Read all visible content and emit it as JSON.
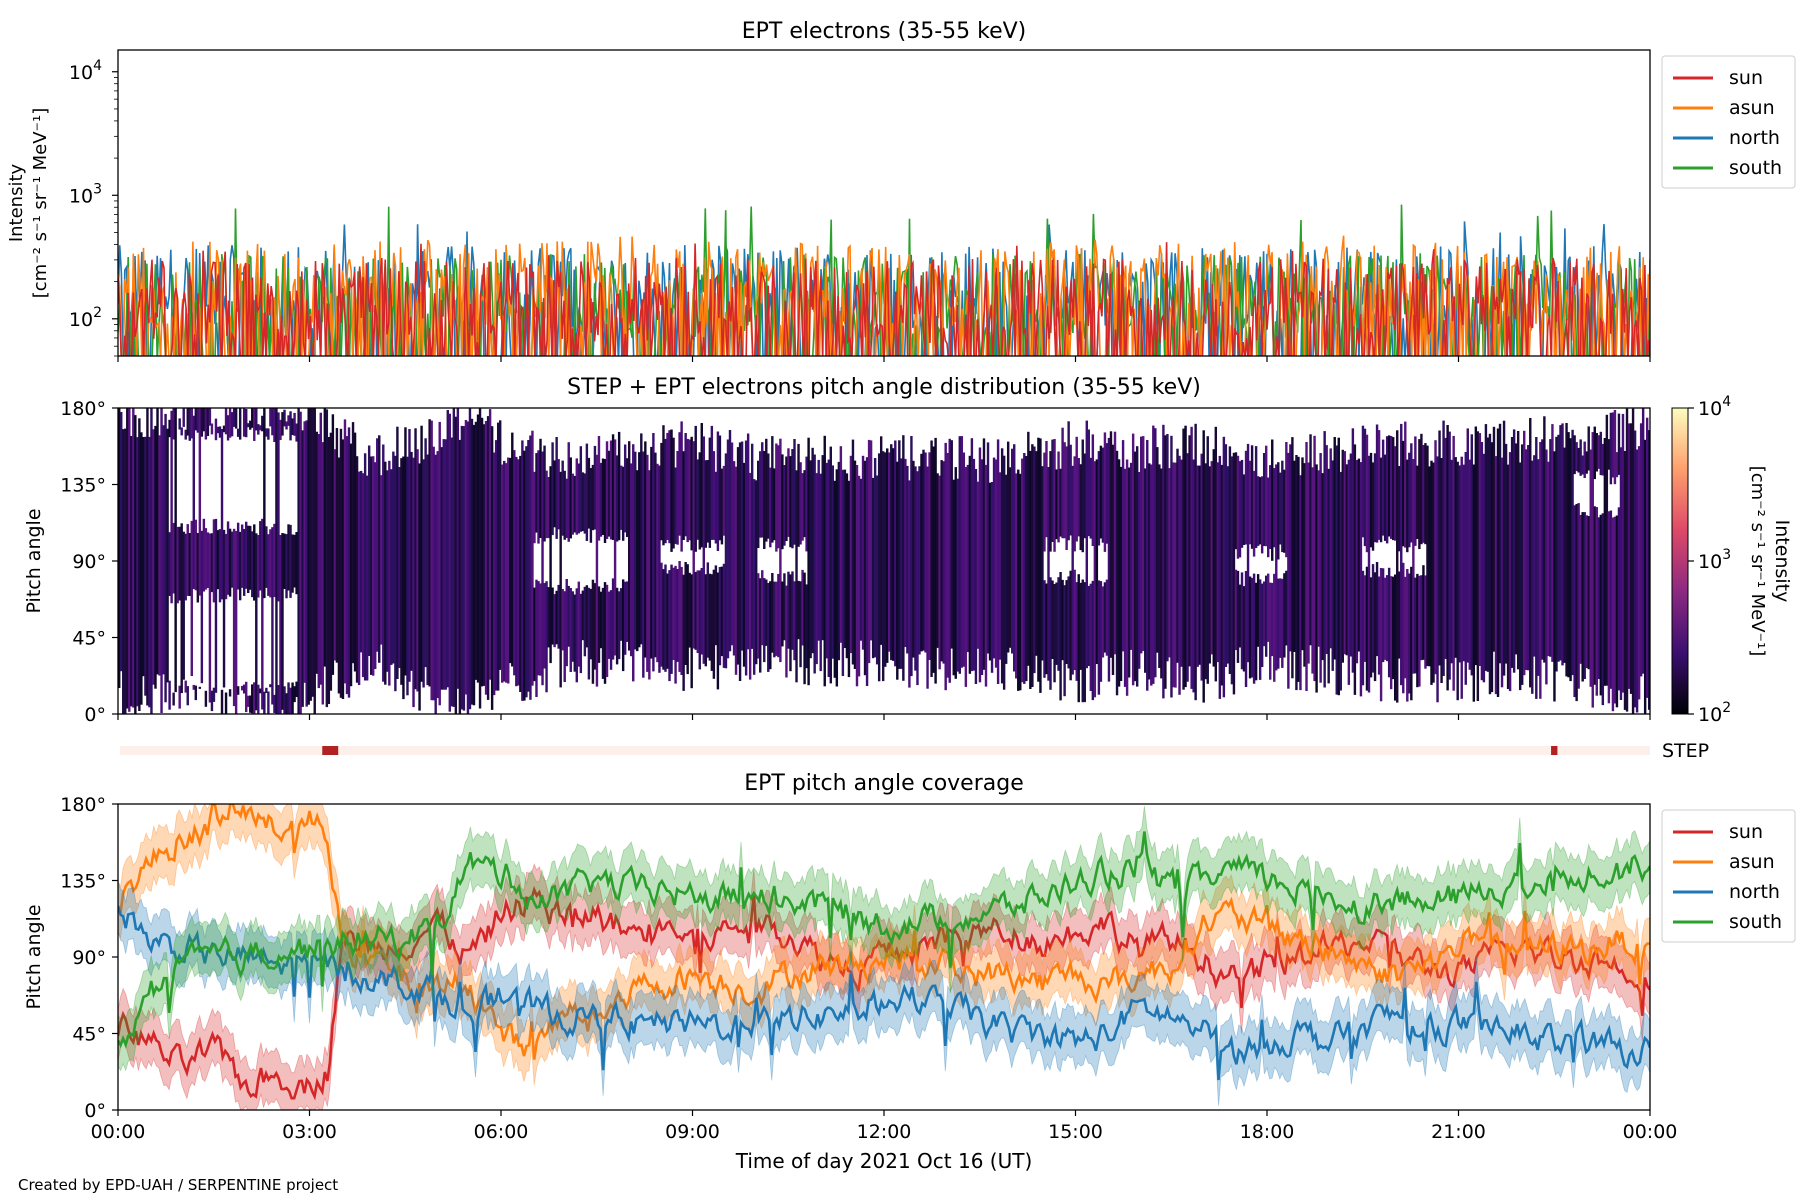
{
  "chart_data": [
    {
      "type": "line",
      "title": "EPT electrons (35-55 keV)",
      "ylabel_line1": "Intensity",
      "ylabel_line2": "[cm⁻² s⁻¹ sr⁻¹ MeV⁻¹]",
      "yscale": "log",
      "ylim": [
        50,
        15000
      ],
      "yticks": [
        {
          "base": "10",
          "exp": "2"
        },
        {
          "base": "10",
          "exp": "3"
        },
        {
          "base": "10",
          "exp": "4"
        }
      ],
      "xlim_hours": [
        0,
        24
      ],
      "legend_position": "outside-right",
      "series": [
        {
          "name": "sun",
          "color": "#d62728",
          "typical": 110,
          "peak": 420
        },
        {
          "name": "asun",
          "color": "#ff7f0e",
          "typical": 150,
          "peak": 480
        },
        {
          "name": "north",
          "color": "#1f77b4",
          "typical": 140,
          "peak": 620
        },
        {
          "name": "south",
          "color": "#2ca02c",
          "typical": 120,
          "peak": 880
        }
      ]
    },
    {
      "type": "heatmap",
      "title": "STEP + EPT electrons pitch angle distribution (35-55 keV)",
      "ylabel": "Pitch angle",
      "ylim": [
        0,
        180
      ],
      "yticks": [
        "0°",
        "45°",
        "90°",
        "135°",
        "180°"
      ],
      "colorbar": {
        "label_line1": "Intensity",
        "label_line2": "[cm⁻² s⁻¹ sr⁻¹ MeV⁻¹]",
        "scale": "log",
        "range": [
          100,
          10000
        ],
        "ticks": [
          {
            "base": "10",
            "exp": "2"
          },
          {
            "base": "10",
            "exp": "3"
          },
          {
            "base": "10",
            "exp": "4"
          }
        ],
        "colormap": [
          "#000004",
          "#3b0f70",
          "#8c2981",
          "#de4968",
          "#fe9f6d",
          "#fcfdbf"
        ]
      },
      "coverage_envelope_degrees": [
        [
          0.0,
          12,
          175
        ],
        [
          1.0,
          10,
          178
        ],
        [
          2.0,
          5,
          180
        ],
        [
          3.0,
          8,
          180
        ],
        [
          3.4,
          20,
          165
        ],
        [
          4.0,
          30,
          150
        ],
        [
          5.0,
          10,
          165
        ],
        [
          5.5,
          5,
          178
        ],
        [
          6.0,
          15,
          160
        ],
        [
          7.0,
          30,
          150
        ],
        [
          8.0,
          30,
          155
        ],
        [
          9.0,
          25,
          160
        ],
        [
          10.0,
          30,
          150
        ],
        [
          11.0,
          30,
          150
        ],
        [
          12.0,
          30,
          150
        ],
        [
          13.0,
          25,
          150
        ],
        [
          14.0,
          25,
          150
        ],
        [
          15.0,
          20,
          160
        ],
        [
          16.0,
          25,
          155
        ],
        [
          17.0,
          20,
          160
        ],
        [
          18.0,
          30,
          150
        ],
        [
          19.0,
          25,
          155
        ],
        [
          20.0,
          20,
          158
        ],
        [
          21.0,
          20,
          160
        ],
        [
          22.0,
          25,
          160
        ],
        [
          23.0,
          15,
          165
        ],
        [
          24.0,
          10,
          170
        ]
      ],
      "gaps_degrees": [
        [
          0.8,
          2.8,
          110,
          165
        ],
        [
          0.8,
          2.8,
          15,
          70
        ],
        [
          6.5,
          8.0,
          75,
          105
        ],
        [
          8.5,
          9.5,
          85,
          100
        ],
        [
          10.0,
          10.8,
          80,
          100
        ],
        [
          14.5,
          15.5,
          80,
          100
        ],
        [
          17.5,
          18.3,
          80,
          95
        ],
        [
          19.5,
          20.5,
          85,
          100
        ],
        [
          22.8,
          23.6,
          120,
          140
        ]
      ]
    },
    {
      "type": "bar",
      "label": "STEP",
      "segments_hours": [
        [
          3.2,
          3.45
        ],
        [
          22.45,
          22.55
        ]
      ],
      "active_color": "#b22222",
      "background_color": "#fdf0eb"
    },
    {
      "type": "line",
      "title": "EPT pitch angle coverage",
      "ylabel": "Pitch angle",
      "xlabel": "Time of day 2021 Oct 16 (UT)",
      "ylim": [
        0,
        180
      ],
      "yticks": [
        "0°",
        "45°",
        "90°",
        "135°",
        "180°"
      ],
      "xlim_hours": [
        0,
        24
      ],
      "xticks": [
        "00:00",
        "03:00",
        "06:00",
        "09:00",
        "12:00",
        "15:00",
        "18:00",
        "21:00",
        "00:00"
      ],
      "legend_position": "outside-right",
      "band_half_width_degrees": 15,
      "series": [
        {
          "name": "sun",
          "color": "#d62728",
          "points": [
            [
              0,
              50
            ],
            [
              0.5,
              40
            ],
            [
              1,
              25
            ],
            [
              1.5,
              35
            ],
            [
              2,
              15
            ],
            [
              2.5,
              20
            ],
            [
              3,
              15
            ],
            [
              3.3,
              25
            ],
            [
              3.5,
              100
            ],
            [
              4,
              95
            ],
            [
              4.5,
              100
            ],
            [
              5,
              110
            ],
            [
              5.5,
              90
            ],
            [
              6,
              115
            ],
            [
              6.5,
              125
            ],
            [
              7,
              115
            ],
            [
              7.5,
              115
            ],
            [
              8,
              105
            ],
            [
              8.5,
              110
            ],
            [
              9,
              100
            ],
            [
              9.5,
              105
            ],
            [
              10,
              110
            ],
            [
              10.5,
              105
            ],
            [
              11,
              90
            ],
            [
              11.5,
              85
            ],
            [
              12,
              90
            ],
            [
              12.5,
              95
            ],
            [
              13,
              100
            ],
            [
              13.5,
              105
            ],
            [
              14,
              105
            ],
            [
              14.5,
              100
            ],
            [
              15,
              105
            ],
            [
              15.5,
              110
            ],
            [
              16,
              95
            ],
            [
              16.5,
              100
            ],
            [
              17,
              90
            ],
            [
              17.5,
              75
            ],
            [
              18,
              85
            ],
            [
              18.5,
              90
            ],
            [
              19,
              95
            ],
            [
              19.5,
              100
            ],
            [
              20,
              90
            ],
            [
              20.5,
              85
            ],
            [
              21,
              80
            ],
            [
              21.5,
              90
            ],
            [
              22,
              95
            ],
            [
              22.5,
              90
            ],
            [
              23,
              90
            ],
            [
              23.5,
              85
            ],
            [
              24,
              80
            ]
          ]
        },
        {
          "name": "asun",
          "color": "#ff7f0e",
          "points": [
            [
              0,
              125
            ],
            [
              0.5,
              145
            ],
            [
              1,
              160
            ],
            [
              1.5,
              170
            ],
            [
              2,
              175
            ],
            [
              2.5,
              165
            ],
            [
              3,
              170
            ],
            [
              3.3,
              160
            ],
            [
              3.5,
              95
            ],
            [
              4,
              90
            ],
            [
              4.5,
              75
            ],
            [
              5,
              70
            ],
            [
              5.5,
              75
            ],
            [
              6,
              45
            ],
            [
              6.5,
              35
            ],
            [
              7,
              55
            ],
            [
              7.5,
              60
            ],
            [
              8,
              70
            ],
            [
              8.5,
              75
            ],
            [
              9,
              80
            ],
            [
              9.5,
              75
            ],
            [
              10,
              70
            ],
            [
              10.5,
              80
            ],
            [
              11,
              85
            ],
            [
              11.5,
              85
            ],
            [
              12,
              90
            ],
            [
              12.5,
              90
            ],
            [
              13,
              85
            ],
            [
              13.5,
              80
            ],
            [
              14,
              80
            ],
            [
              14.5,
              75
            ],
            [
              15,
              80
            ],
            [
              15.5,
              75
            ],
            [
              16,
              80
            ],
            [
              16.5,
              85
            ],
            [
              17,
              110
            ],
            [
              17.5,
              115
            ],
            [
              18,
              105
            ],
            [
              18.5,
              100
            ],
            [
              19,
              95
            ],
            [
              19.5,
              85
            ],
            [
              20,
              80
            ],
            [
              20.5,
              85
            ],
            [
              21,
              95
            ],
            [
              21.5,
              100
            ],
            [
              22,
              95
            ],
            [
              22.5,
              95
            ],
            [
              23,
              95
            ],
            [
              23.5,
              100
            ],
            [
              24,
              95
            ]
          ]
        },
        {
          "name": "north",
          "color": "#1f77b4",
          "points": [
            [
              0,
              120
            ],
            [
              0.5,
              100
            ],
            [
              1,
              95
            ],
            [
              1.5,
              90
            ],
            [
              2,
              90
            ],
            [
              2.5,
              85
            ],
            [
              3,
              85
            ],
            [
              3.3,
              85
            ],
            [
              3.5,
              80
            ],
            [
              4,
              80
            ],
            [
              4.5,
              75
            ],
            [
              5,
              70
            ],
            [
              5.5,
              60
            ],
            [
              6,
              65
            ],
            [
              6.5,
              60
            ],
            [
              7,
              55
            ],
            [
              7.5,
              55
            ],
            [
              8,
              50
            ],
            [
              8.5,
              50
            ],
            [
              9,
              50
            ],
            [
              9.5,
              50
            ],
            [
              10,
              55
            ],
            [
              10.5,
              55
            ],
            [
              11,
              55
            ],
            [
              11.5,
              60
            ],
            [
              12,
              65
            ],
            [
              12.5,
              65
            ],
            [
              13,
              60
            ],
            [
              13.5,
              55
            ],
            [
              14,
              45
            ],
            [
              14.5,
              45
            ],
            [
              15,
              40
            ],
            [
              15.5,
              45
            ],
            [
              16,
              60
            ],
            [
              16.5,
              55
            ],
            [
              17,
              45
            ],
            [
              17.5,
              35
            ],
            [
              18,
              40
            ],
            [
              18.5,
              45
            ],
            [
              19,
              40
            ],
            [
              19.5,
              50
            ],
            [
              20,
              55
            ],
            [
              20.5,
              50
            ],
            [
              21,
              50
            ],
            [
              21.5,
              45
            ],
            [
              22,
              45
            ],
            [
              22.5,
              40
            ],
            [
              23,
              40
            ],
            [
              23.5,
              35
            ],
            [
              24,
              35
            ]
          ]
        },
        {
          "name": "south",
          "color": "#2ca02c",
          "points": [
            [
              0,
              35
            ],
            [
              0.5,
              70
            ],
            [
              1,
              85
            ],
            [
              1.5,
              90
            ],
            [
              2,
              90
            ],
            [
              2.5,
              95
            ],
            [
              3,
              95
            ],
            [
              3.3,
              95
            ],
            [
              3.5,
              100
            ],
            [
              4,
              100
            ],
            [
              4.5,
              100
            ],
            [
              5,
              110
            ],
            [
              5.5,
              145
            ],
            [
              6,
              140
            ],
            [
              6.5,
              130
            ],
            [
              7,
              125
            ],
            [
              7.5,
              135
            ],
            [
              8,
              130
            ],
            [
              8.5,
              130
            ],
            [
              9,
              125
            ],
            [
              9.5,
              125
            ],
            [
              10,
              130
            ],
            [
              10.5,
              125
            ],
            [
              11,
              120
            ],
            [
              11.5,
              115
            ],
            [
              12,
              110
            ],
            [
              12.5,
              110
            ],
            [
              13,
              115
            ],
            [
              13.5,
              115
            ],
            [
              14,
              120
            ],
            [
              14.5,
              125
            ],
            [
              15,
              135
            ],
            [
              15.5,
              140
            ],
            [
              16,
              140
            ],
            [
              16.5,
              130
            ],
            [
              17,
              135
            ],
            [
              17.5,
              140
            ],
            [
              18,
              135
            ],
            [
              18.5,
              130
            ],
            [
              19,
              125
            ],
            [
              19.5,
              120
            ],
            [
              20,
              125
            ],
            [
              20.5,
              120
            ],
            [
              21,
              125
            ],
            [
              21.5,
              130
            ],
            [
              22,
              135
            ],
            [
              22.5,
              135
            ],
            [
              23,
              140
            ],
            [
              23.5,
              145
            ],
            [
              24,
              145
            ]
          ]
        }
      ]
    }
  ],
  "footer": {
    "credit": "Created by EPD-UAH / SERPENTINE project"
  }
}
